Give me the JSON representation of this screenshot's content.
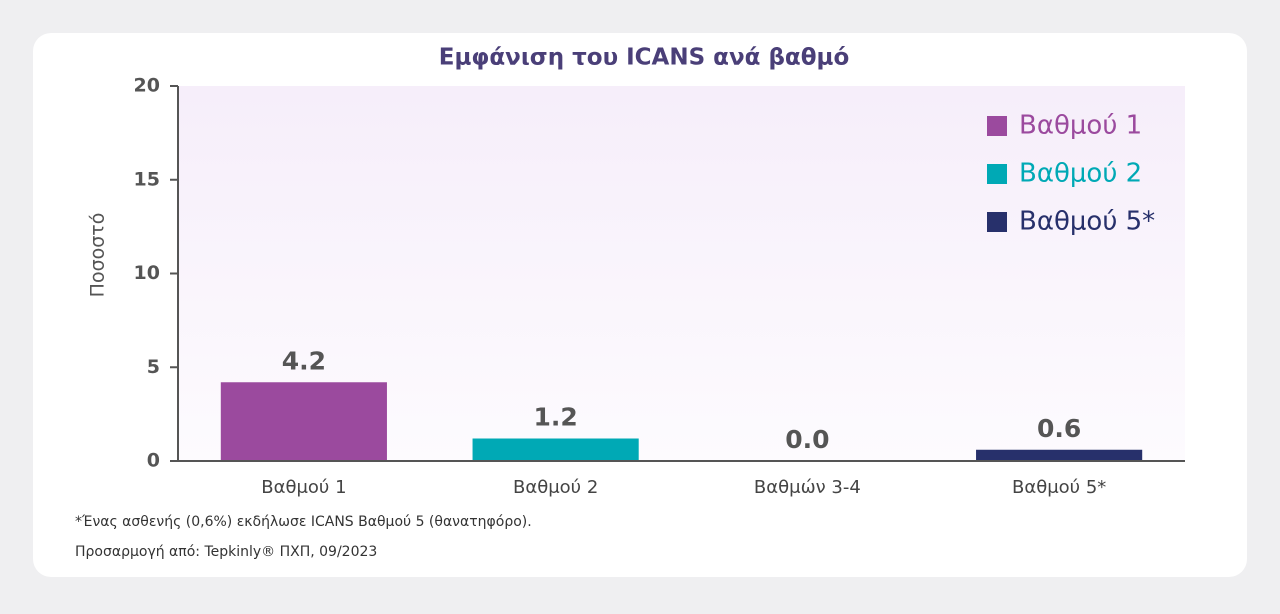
{
  "chart_data": {
    "type": "bar",
    "title": "Εμφάνιση του ICANS ανά βαθμό",
    "y_label": "Ποσοστό",
    "categories": [
      "Βαθμού 1",
      "Βαθμού 2",
      "Βαθμών 3-4",
      "Βαθμού 5*"
    ],
    "values": [
      4.2,
      1.2,
      0,
      0.6
    ],
    "value_labels": [
      "4.2",
      "1.2",
      "0.0",
      "0.6"
    ],
    "colors": [
      "#9b4a9e",
      "#00a9b5",
      "#27306b",
      "#27306b"
    ],
    "legend": [
      {
        "name": "Βαθμού 1",
        "color": "#9b4a9e"
      },
      {
        "name": "Βαθμού 2",
        "color": "#00a9b5"
      },
      {
        "name": "Βαθμού 5*",
        "color": "#27306b"
      }
    ],
    "legend_position": "upper right",
    "ylim": [
      0,
      20
    ],
    "yticks": [
      0,
      5,
      10,
      15,
      20
    ],
    "grid": false
  },
  "footnotes": [
    "*Ένας ασθενής (0,6%) εκδήλωσε ICANS Βαθμού 5 (θανατηφόρο).",
    "Προσαρμογή από: Tepkinly® ΠΧΠ, 09/2023"
  ]
}
